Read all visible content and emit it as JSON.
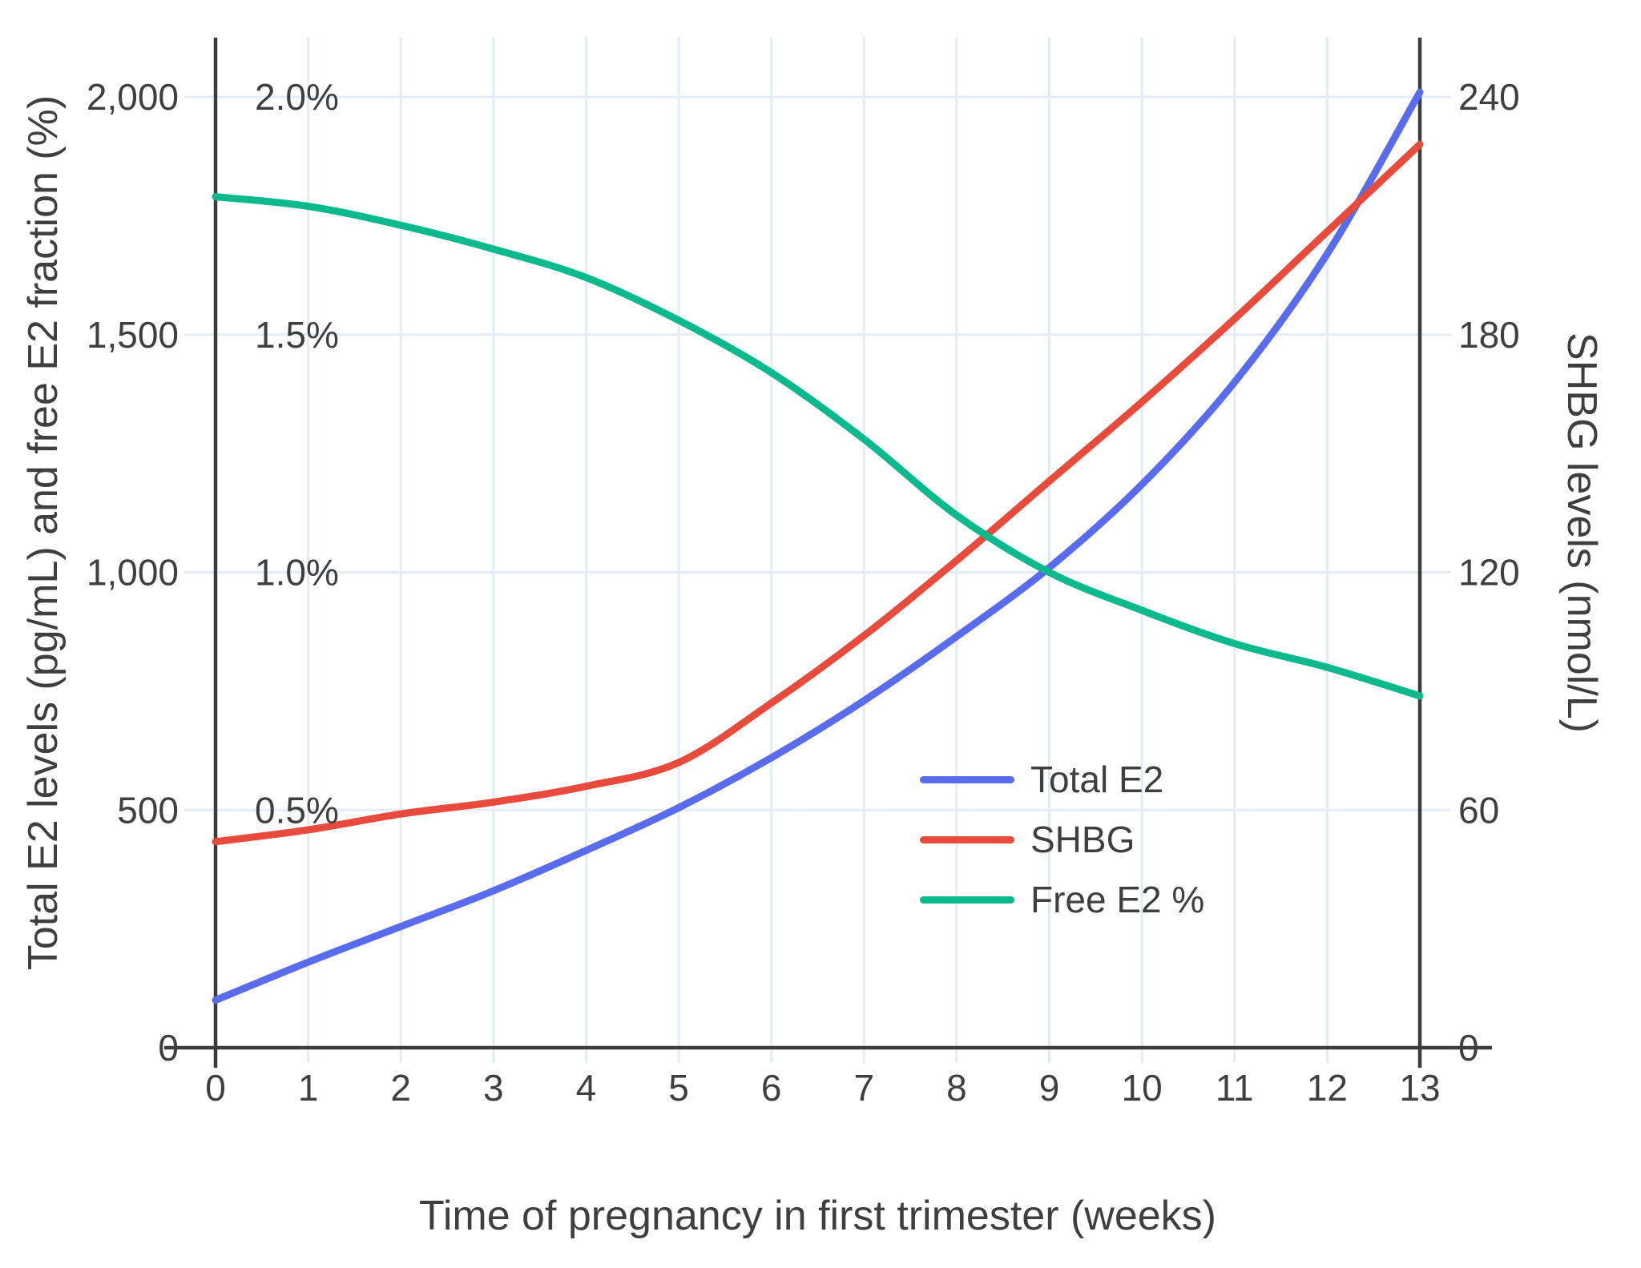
{
  "chart_data": {
    "type": "line",
    "title": "",
    "x": {
      "title": "Time of pregnancy in first trimester (weeks)",
      "tick_labels": [
        "0",
        "1",
        "2",
        "3",
        "4",
        "5",
        "6",
        "7",
        "8",
        "9",
        "10",
        "11",
        "12",
        "13"
      ],
      "tick_values": [
        0,
        1,
        2,
        3,
        4,
        5,
        6,
        7,
        8,
        9,
        10,
        11,
        12,
        13
      ],
      "range": [
        0,
        13
      ]
    },
    "y_left": {
      "title": "Total E2 levels (pg/mL) and free E2 fraction (%)",
      "tick_labels": [
        "0",
        "500",
        "1,000",
        "1,500",
        "2,000"
      ],
      "tick_values": [
        0,
        500,
        1000,
        1500,
        2000
      ],
      "range": [
        0,
        2125
      ]
    },
    "y_left_pct": {
      "tick_labels": [
        "0.5%",
        "1.0%",
        "1.5%",
        "2.0%"
      ],
      "tick_values": [
        500,
        1000,
        1500,
        2000
      ]
    },
    "y_right": {
      "title": "SHBG levels (nmol/L)",
      "tick_labels": [
        "0",
        "60",
        "120",
        "180",
        "240"
      ],
      "tick_values": [
        0,
        60,
        120,
        180,
        240
      ],
      "range": [
        0,
        255
      ]
    },
    "weeks": [
      0,
      1,
      2,
      3,
      4,
      5,
      6,
      7,
      8,
      9,
      10,
      11,
      12,
      13
    ],
    "series": [
      {
        "name": "Total E2",
        "unit": "pg/mL",
        "axis": "left",
        "color": "#5a6cee",
        "values": [
          100,
          180,
          255,
          330,
          415,
          505,
          610,
          730,
          865,
          1010,
          1185,
          1400,
          1670,
          2010
        ]
      },
      {
        "name": "SHBG",
        "unit": "nmol/L",
        "axis": "right",
        "color": "#e84a3c",
        "values": [
          52,
          55,
          59,
          62,
          66,
          72,
          87,
          104,
          123,
          143,
          163,
          184,
          206,
          228
        ]
      },
      {
        "name": "Free E2 %",
        "unit": "%",
        "axis": "left_pct",
        "color": "#0bba8c",
        "values": [
          1.79,
          1.77,
          1.73,
          1.68,
          1.62,
          1.53,
          1.42,
          1.28,
          1.12,
          1.0,
          0.92,
          0.85,
          0.8,
          0.74
        ]
      }
    ],
    "legend_position": "inside-right-middle",
    "grid": true,
    "colors": {
      "grid": "#e6ecf6",
      "axis": "#3c3c3c",
      "text": "#3f3f3f",
      "background": "#ffffff"
    }
  }
}
